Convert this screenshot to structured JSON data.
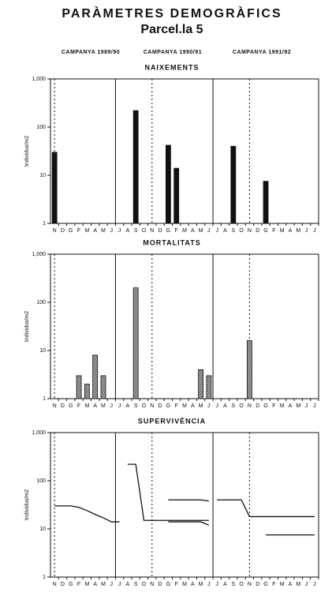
{
  "header": {
    "title": "PARÀMETRES DEMOGRÀFICS",
    "subtitle": "Parcel.la 5",
    "campaigns": [
      "CAMPANYA 1989/90",
      "CAMPANYA 1990/91",
      "CAMPANYA 1991/92"
    ]
  },
  "chart_data": [
    {
      "type": "bar",
      "title": "NAIXEMENTS",
      "ylabel": "Individus/m2",
      "yscale": "log",
      "fill": "solid",
      "color": "#111111",
      "categories": [
        "N",
        "D",
        "G",
        "F",
        "M",
        "A",
        "M",
        "J",
        "J",
        "A",
        "S",
        "O",
        "N",
        "D",
        "G",
        "F",
        "M",
        "A",
        "M",
        "J",
        "J",
        "A",
        "S",
        "O",
        "N",
        "D",
        "G",
        "F",
        "M",
        "A",
        "M",
        "J",
        "J"
      ],
      "values": [
        30,
        null,
        null,
        null,
        null,
        null,
        null,
        null,
        null,
        null,
        220,
        null,
        null,
        null,
        42,
        14,
        null,
        null,
        null,
        null,
        null,
        null,
        40,
        null,
        null,
        null,
        7.5,
        null,
        null,
        null,
        null,
        null,
        null
      ],
      "ylim": [
        1,
        1000
      ],
      "yticks": [
        1,
        10,
        100,
        {
          "value": 1000,
          "label": "1,000"
        }
      ]
    },
    {
      "type": "bar",
      "title": "MORTALITATS",
      "ylabel": "Individus/m2",
      "yscale": "log",
      "fill": "hatched",
      "color": "#111111",
      "categories": [
        "N",
        "D",
        "G",
        "F",
        "M",
        "A",
        "M",
        "J",
        "J",
        "A",
        "S",
        "O",
        "N",
        "D",
        "G",
        "F",
        "M",
        "A",
        "M",
        "J",
        "J",
        "A",
        "S",
        "O",
        "N",
        "D",
        "G",
        "F",
        "M",
        "A",
        "M",
        "J",
        "J"
      ],
      "values": [
        null,
        null,
        null,
        3,
        2,
        8,
        3,
        null,
        null,
        null,
        200,
        null,
        null,
        null,
        null,
        null,
        null,
        null,
        4,
        3,
        null,
        null,
        null,
        null,
        16,
        null,
        null,
        null,
        null,
        null,
        null,
        null,
        null
      ],
      "ylim": [
        1,
        1000
      ],
      "yticks": [
        1,
        10,
        100,
        {
          "value": 1000,
          "label": "1,000"
        }
      ]
    },
    {
      "type": "line",
      "title": "SUPERVIVÈNCIA",
      "ylabel": "Individus/m2",
      "yscale": "log",
      "categories": [
        "N",
        "D",
        "G",
        "F",
        "M",
        "A",
        "M",
        "J",
        "J",
        "A",
        "S",
        "O",
        "N",
        "D",
        "G",
        "F",
        "M",
        "A",
        "M",
        "J",
        "J",
        "A",
        "S",
        "O",
        "N",
        "D",
        "G",
        "F",
        "M",
        "A",
        "M",
        "J",
        "J"
      ],
      "series": [
        {
          "color": "#111111",
          "values": [
            30,
            30,
            30,
            28,
            24,
            20,
            17,
            14,
            14,
            null,
            null,
            null,
            null,
            null,
            null,
            null,
            null,
            null,
            null,
            null,
            null,
            null,
            null,
            null,
            null,
            null,
            null,
            null,
            null,
            null,
            null,
            null,
            null
          ]
        },
        {
          "color": "#111111",
          "values": [
            null,
            null,
            null,
            null,
            null,
            null,
            null,
            null,
            null,
            220,
            220,
            15,
            15,
            15,
            15,
            15,
            15,
            15,
            15,
            15,
            null,
            null,
            null,
            null,
            null,
            null,
            null,
            null,
            null,
            null,
            null,
            null,
            null
          ]
        },
        {
          "color": "#111111",
          "values": [
            null,
            null,
            null,
            null,
            null,
            null,
            null,
            null,
            null,
            null,
            null,
            null,
            null,
            null,
            40,
            40,
            40,
            40,
            40,
            38,
            null,
            null,
            null,
            null,
            null,
            null,
            null,
            null,
            null,
            null,
            null,
            null,
            null
          ]
        },
        {
          "color": "#111111",
          "values": [
            null,
            null,
            null,
            null,
            null,
            null,
            null,
            null,
            null,
            null,
            null,
            null,
            null,
            null,
            14,
            14,
            14,
            14,
            14,
            12,
            null,
            null,
            null,
            null,
            null,
            null,
            null,
            null,
            null,
            null,
            null,
            null,
            null
          ]
        },
        {
          "color": "#111111",
          "values": [
            null,
            null,
            null,
            null,
            null,
            null,
            null,
            null,
            null,
            null,
            null,
            null,
            null,
            null,
            null,
            null,
            null,
            null,
            null,
            null,
            40,
            40,
            40,
            40,
            18,
            18,
            18,
            18,
            18,
            18,
            18,
            18,
            18
          ]
        },
        {
          "color": "#111111",
          "values": [
            null,
            null,
            null,
            null,
            null,
            null,
            null,
            null,
            null,
            null,
            null,
            null,
            null,
            null,
            null,
            null,
            null,
            null,
            null,
            null,
            null,
            null,
            null,
            null,
            null,
            null,
            7.5,
            7.5,
            7.5,
            7.5,
            7.5,
            7.5,
            7.5
          ]
        }
      ],
      "ylim": [
        1,
        1000
      ],
      "yticks": [
        1,
        10,
        100,
        {
          "value": 1000,
          "label": "1,000"
        }
      ]
    }
  ]
}
